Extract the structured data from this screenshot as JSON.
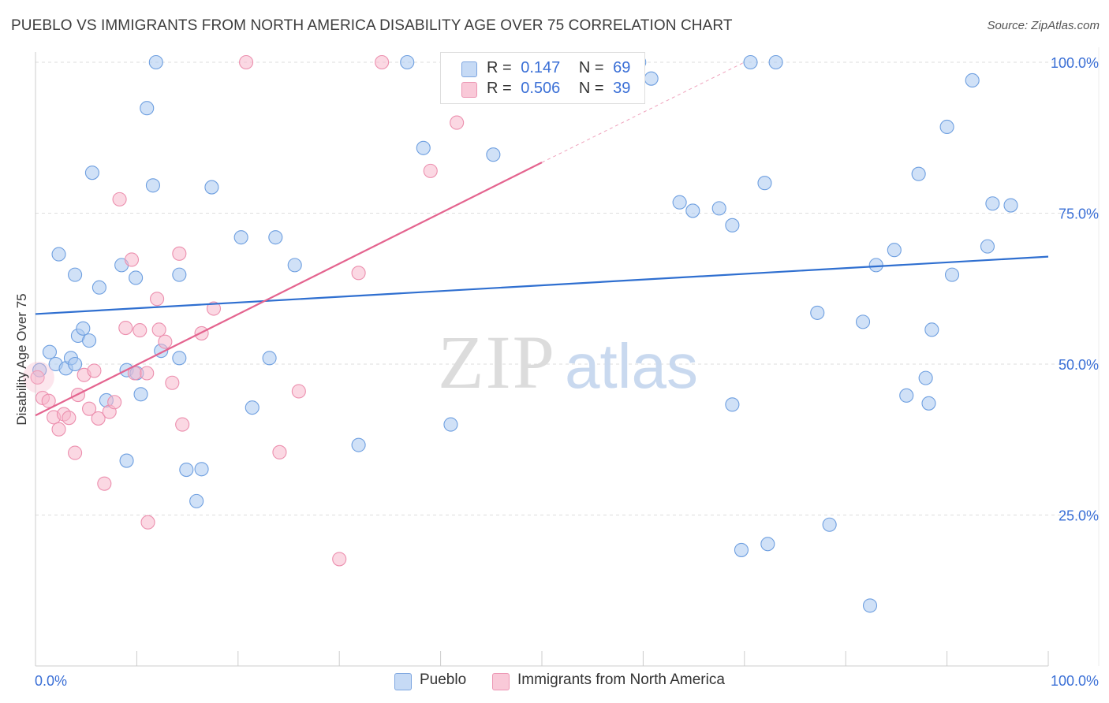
{
  "title": "PUEBLO VS IMMIGRANTS FROM NORTH AMERICA DISABILITY AGE OVER 75 CORRELATION CHART",
  "source": "Source: ZipAtlas.com",
  "watermark": {
    "zip": "ZIP",
    "atlas": "atlas"
  },
  "legend": {
    "r_label": "R =",
    "n_label": "N =",
    "series": [
      {
        "name": "Pueblo",
        "r": "0.147",
        "n": "69"
      },
      {
        "name": "Immigrants from North America",
        "r": "0.506",
        "n": "39"
      }
    ]
  },
  "chart_data": {
    "type": "scatter",
    "title": "PUEBLO VS IMMIGRANTS FROM NORTH AMERICA DISABILITY AGE OVER 75 CORRELATION CHART",
    "xlabel": "",
    "ylabel": "Disability Age Over 75",
    "xlim": [
      0,
      100
    ],
    "ylim": [
      0,
      100
    ],
    "x_tick_labels": [
      "0.0%",
      "100.0%"
    ],
    "y_ticks": [
      25,
      50,
      75,
      100
    ],
    "y_tick_labels": [
      "25.0%",
      "50.0%",
      "75.0%",
      "100.0%"
    ],
    "grid": true,
    "colors": {
      "pueblo_fill": "#a9c8f0",
      "pueblo_stroke": "#6e9fe0",
      "pueblo_line": "#2f6fd0",
      "immig_fill": "#f7b8cc",
      "immig_stroke": "#ec8fae",
      "immig_line": "#e4648f",
      "axis_text": "#3a6fd6",
      "grid": "#dddddd"
    },
    "series": [
      {
        "name": "Pueblo",
        "trend": {
          "x": [
            0,
            100
          ],
          "y": [
            58.3,
            67.8
          ]
        },
        "points": [
          [
            11.9,
            100
          ],
          [
            0.4,
            49.0
          ],
          [
            1.4,
            52.0
          ],
          [
            2.0,
            50.0
          ],
          [
            2.3,
            68.2
          ],
          [
            3.0,
            49.3
          ],
          [
            3.5,
            51.0
          ],
          [
            3.9,
            64.8
          ],
          [
            4.2,
            54.7
          ],
          [
            4.7,
            55.9
          ],
          [
            5.3,
            53.9
          ],
          [
            5.6,
            81.7
          ],
          [
            6.3,
            62.7
          ],
          [
            7.0,
            44.0
          ],
          [
            8.5,
            66.4
          ],
          [
            9.0,
            34.0
          ],
          [
            9.0,
            49.0
          ],
          [
            9.9,
            64.3
          ],
          [
            10.4,
            45.0
          ],
          [
            11.0,
            92.4
          ],
          [
            11.6,
            79.6
          ],
          [
            12.4,
            52.2
          ],
          [
            14.2,
            51.0
          ],
          [
            14.2,
            64.8
          ],
          [
            14.9,
            32.5
          ],
          [
            15.9,
            27.3
          ],
          [
            16.4,
            32.6
          ],
          [
            17.4,
            79.3
          ],
          [
            20.3,
            71.0
          ],
          [
            21.4,
            42.8
          ],
          [
            23.7,
            71.0
          ],
          [
            23.1,
            51.0
          ],
          [
            25.6,
            66.4
          ],
          [
            31.9,
            36.6
          ],
          [
            36.7,
            100
          ],
          [
            38.3,
            85.8
          ],
          [
            41.0,
            40.0
          ],
          [
            45.2,
            84.7
          ],
          [
            59.6,
            100
          ],
          [
            60.8,
            97.3
          ],
          [
            63.6,
            76.8
          ],
          [
            64.9,
            75.4
          ],
          [
            67.5,
            75.8
          ],
          [
            68.8,
            73.0
          ],
          [
            68.8,
            43.3
          ],
          [
            70.6,
            100
          ],
          [
            69.7,
            19.2
          ],
          [
            72.0,
            80.0
          ],
          [
            72.3,
            20.2
          ],
          [
            73.1,
            100
          ],
          [
            77.2,
            58.5
          ],
          [
            78.4,
            23.4
          ],
          [
            81.7,
            57.0
          ],
          [
            82.4,
            10.0
          ],
          [
            83.0,
            66.4
          ],
          [
            84.8,
            68.9
          ],
          [
            86.0,
            44.8
          ],
          [
            87.2,
            81.5
          ],
          [
            87.9,
            47.7
          ],
          [
            88.2,
            43.5
          ],
          [
            88.5,
            55.7
          ],
          [
            90.0,
            89.3
          ],
          [
            90.5,
            64.8
          ],
          [
            92.5,
            97.0
          ],
          [
            94.0,
            69.5
          ],
          [
            94.5,
            76.6
          ],
          [
            96.3,
            76.3
          ],
          [
            3.9,
            50.0
          ],
          [
            10.0,
            48.5
          ]
        ]
      },
      {
        "name": "Immigrants from North America",
        "trend": {
          "x": [
            0,
            50
          ],
          "y": [
            41.5,
            83.4
          ]
        },
        "trend_ext": {
          "x": [
            50,
            70
          ],
          "y": [
            83.4,
            100
          ]
        },
        "points": [
          [
            0.2,
            47.8
          ],
          [
            0.7,
            44.4
          ],
          [
            1.3,
            43.9
          ],
          [
            1.8,
            41.2
          ],
          [
            2.3,
            39.2
          ],
          [
            2.8,
            41.7
          ],
          [
            3.3,
            41.1
          ],
          [
            3.9,
            35.3
          ],
          [
            4.2,
            44.9
          ],
          [
            4.8,
            48.2
          ],
          [
            5.3,
            42.6
          ],
          [
            5.8,
            48.9
          ],
          [
            6.2,
            41.0
          ],
          [
            6.8,
            30.2
          ],
          [
            7.3,
            42.1
          ],
          [
            7.8,
            43.7
          ],
          [
            8.3,
            77.3
          ],
          [
            8.9,
            56.0
          ],
          [
            9.5,
            67.3
          ],
          [
            9.8,
            48.5
          ],
          [
            10.3,
            55.6
          ],
          [
            11.0,
            48.5
          ],
          [
            11.1,
            23.8
          ],
          [
            12.0,
            60.8
          ],
          [
            12.2,
            55.7
          ],
          [
            12.8,
            53.7
          ],
          [
            13.5,
            46.9
          ],
          [
            14.2,
            68.3
          ],
          [
            14.5,
            40.0
          ],
          [
            16.4,
            55.1
          ],
          [
            17.6,
            59.2
          ],
          [
            20.8,
            100
          ],
          [
            24.1,
            35.4
          ],
          [
            26.0,
            45.5
          ],
          [
            30.0,
            17.7
          ],
          [
            31.9,
            65.1
          ],
          [
            34.2,
            100
          ],
          [
            39.0,
            82.0
          ],
          [
            41.6,
            90.0
          ]
        ]
      }
    ]
  }
}
